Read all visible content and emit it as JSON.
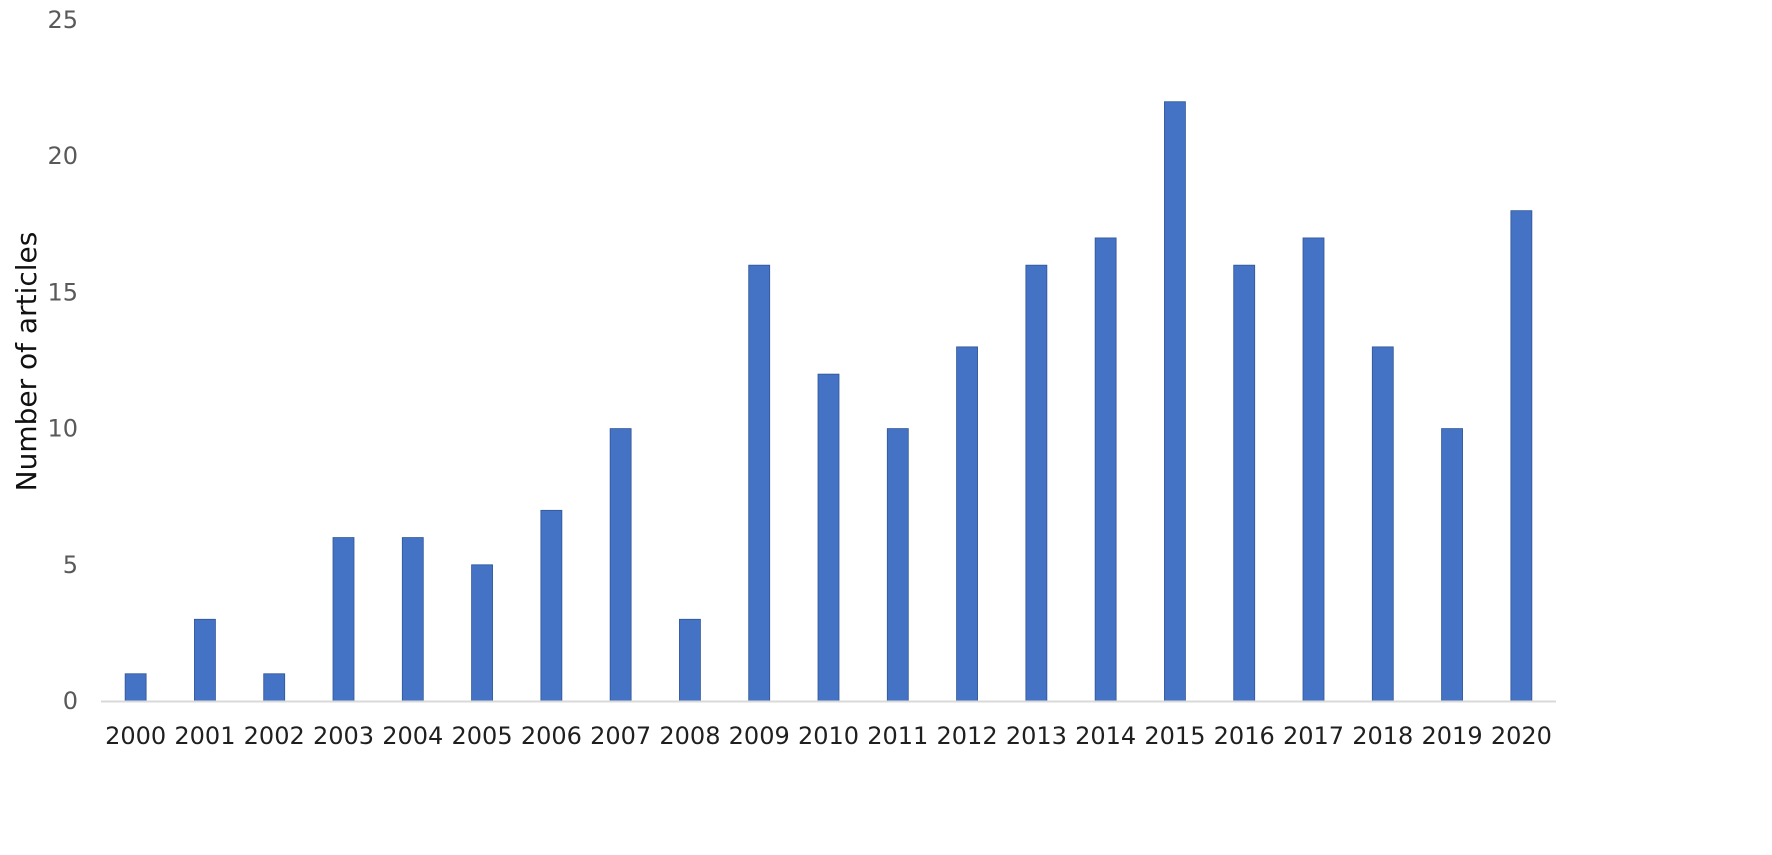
{
  "chart_data": {
    "type": "bar",
    "title": "",
    "xlabel": "",
    "ylabel": "Number of articles",
    "categories": [
      "2000",
      "2001",
      "2002",
      "2003",
      "2004",
      "2005",
      "2006",
      "2007",
      "2008",
      "2009",
      "2010",
      "2011",
      "2012",
      "2013",
      "2014",
      "2015",
      "2016",
      "2017",
      "2018",
      "2019",
      "2020"
    ],
    "values": [
      1,
      3,
      1,
      6,
      6,
      5,
      7,
      10,
      3,
      16,
      12,
      10,
      13,
      16,
      17,
      22,
      16,
      17,
      13,
      10,
      18
    ],
    "ylim": [
      0,
      25
    ],
    "yticks": [
      "0",
      "5",
      "10",
      "15",
      "20",
      "25"
    ],
    "grid": false,
    "legend": "none",
    "colors": {
      "bar": "#4472C4",
      "axis": "#D9D9D9"
    }
  }
}
